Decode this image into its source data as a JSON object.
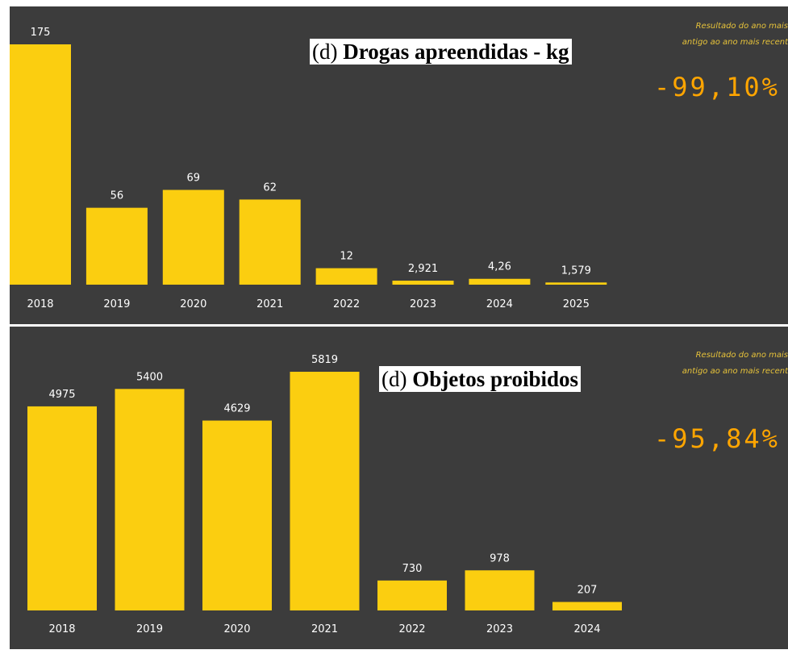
{
  "charts": [
    {
      "tag": "(d)",
      "title": "Drogas apreendidas - kg",
      "kpi_note_line1": "Resultado do ano mais",
      "kpi_note_line2": "antigo ao ano mais recent",
      "kpi_value": "-99,10%",
      "value_labels": [
        "175",
        "56",
        "69",
        "62",
        "12",
        "2,921",
        "4,26",
        "1,579"
      ]
    },
    {
      "tag": "(d)",
      "title": "Objetos proibidos",
      "kpi_note_line1": "Resultado do ano mais",
      "kpi_note_line2": "antigo ao ano mais recent",
      "kpi_value": "-95,84%",
      "value_labels": [
        "4975",
        "5400",
        "4629",
        "5819",
        "730",
        "978",
        "207"
      ]
    }
  ],
  "chart_data": [
    {
      "type": "bar",
      "title": "Drogas apreendidas - kg",
      "categories": [
        "2018",
        "2019",
        "2020",
        "2021",
        "2022",
        "2023",
        "2024",
        "2025"
      ],
      "values": [
        175,
        56,
        69,
        62,
        12,
        2.921,
        4.26,
        1.579
      ],
      "ylim": [
        0,
        175
      ],
      "grid": false,
      "bar_color": "#fbce10"
    },
    {
      "type": "bar",
      "title": "Objetos proibidos",
      "categories": [
        "2018",
        "2019",
        "2020",
        "2021",
        "2022",
        "2023",
        "2024"
      ],
      "values": [
        4975,
        5400,
        4629,
        5819,
        730,
        978,
        207
      ],
      "ylim": [
        0,
        5819
      ],
      "grid": false,
      "bar_color": "#fbce10"
    }
  ],
  "colors": {
    "panel_background": "#3c3c3c",
    "bar": "#fbce10",
    "kpi_value": "#ffa500",
    "kpi_note": "#e6c23a",
    "label_text": "#ffffff"
  }
}
